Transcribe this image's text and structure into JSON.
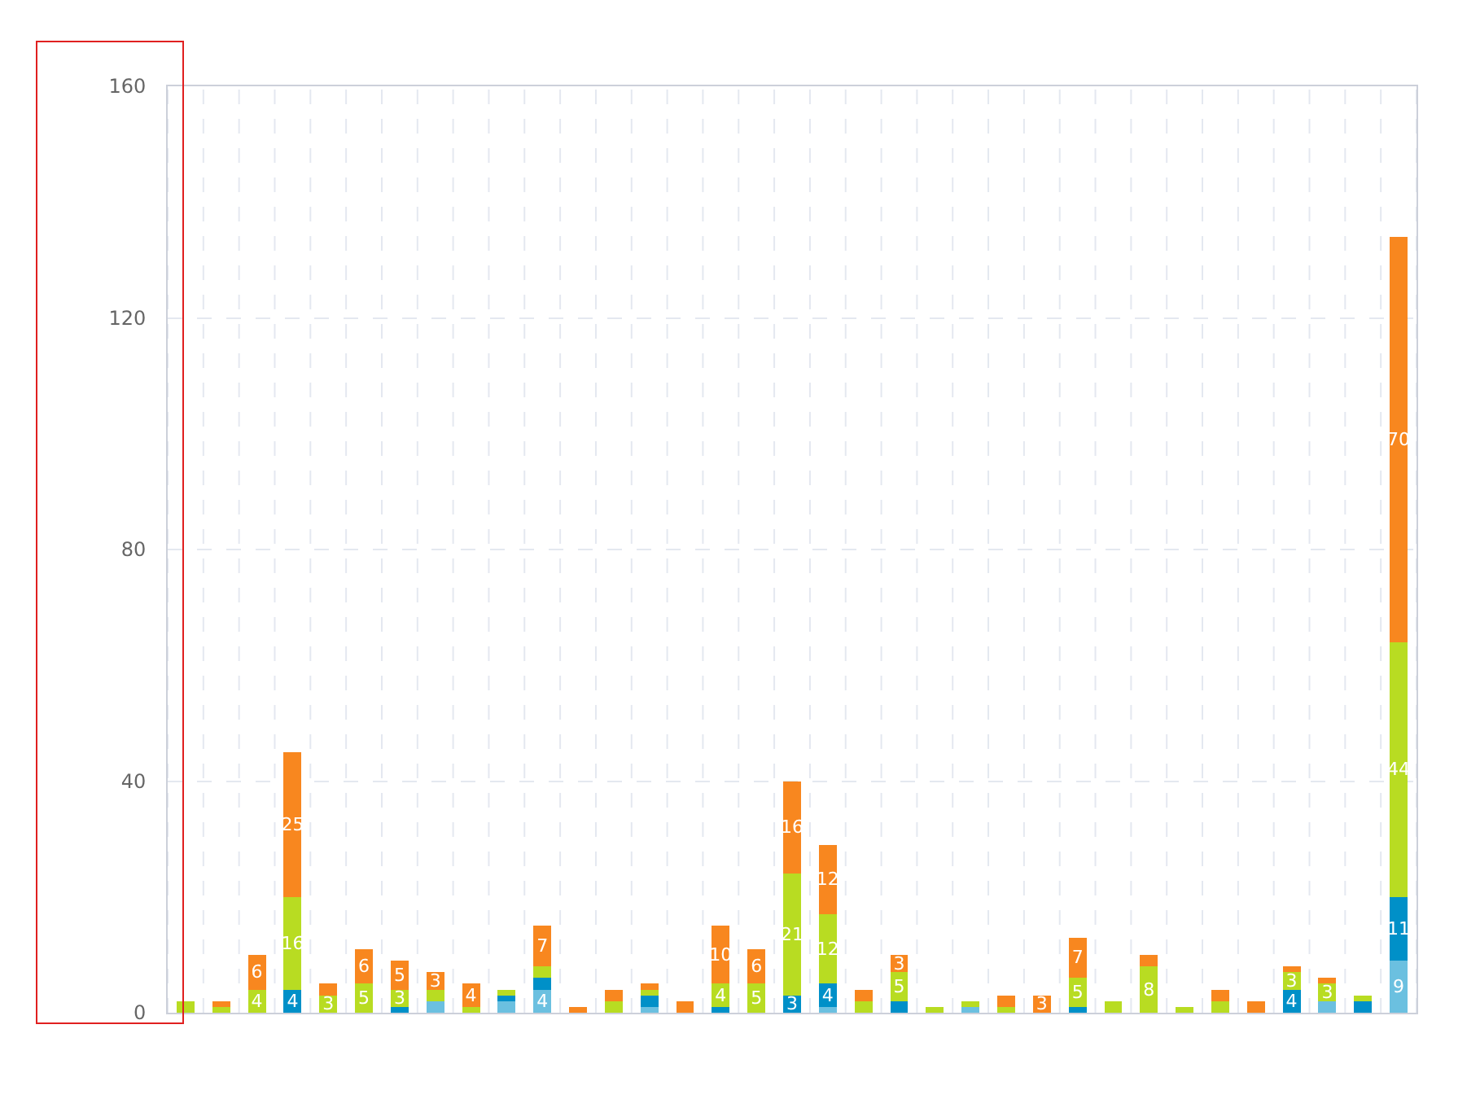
{
  "chart_data": {
    "type": "bar",
    "stacked": true,
    "categories": [
      null,
      null,
      null,
      null,
      null,
      null,
      null,
      null,
      null,
      null,
      null,
      null,
      null,
      null,
      null,
      null,
      null,
      null,
      null,
      null,
      null,
      null,
      null,
      null,
      null,
      null,
      null,
      null,
      null,
      null,
      null,
      null,
      null,
      null,
      null
    ],
    "series": [
      {
        "color": "#6bc0e0",
        "values": [
          null,
          null,
          null,
          null,
          null,
          null,
          null,
          2,
          null,
          2,
          4,
          null,
          null,
          1,
          null,
          null,
          null,
          null,
          1,
          null,
          null,
          null,
          1,
          null,
          null,
          null,
          null,
          null,
          null,
          null,
          null,
          null,
          2,
          null,
          9
        ],
        "value_labels": [
          null,
          null,
          null,
          null,
          null,
          null,
          null,
          null,
          null,
          null,
          "4",
          null,
          null,
          null,
          null,
          null,
          null,
          null,
          null,
          null,
          null,
          null,
          null,
          null,
          null,
          null,
          null,
          null,
          null,
          null,
          null,
          null,
          null,
          null,
          "9"
        ]
      },
      {
        "color": "#0090c8",
        "values": [
          null,
          null,
          null,
          4,
          null,
          null,
          1,
          null,
          null,
          1,
          2,
          null,
          null,
          2,
          null,
          1,
          null,
          3,
          4,
          null,
          2,
          null,
          null,
          null,
          null,
          1,
          null,
          null,
          null,
          null,
          null,
          4,
          null,
          2,
          11
        ],
        "value_labels": [
          null,
          null,
          null,
          "4",
          null,
          null,
          null,
          null,
          null,
          null,
          null,
          null,
          null,
          null,
          null,
          null,
          null,
          "3",
          "4",
          null,
          null,
          null,
          null,
          null,
          null,
          null,
          null,
          null,
          null,
          null,
          null,
          "4",
          null,
          null,
          "11"
        ]
      },
      {
        "color": "#b8dc22",
        "values": [
          2,
          1,
          4,
          16,
          3,
          5,
          3,
          2,
          1,
          1,
          2,
          null,
          2,
          1,
          null,
          4,
          5,
          21,
          12,
          2,
          5,
          1,
          1,
          1,
          null,
          5,
          2,
          8,
          1,
          2,
          null,
          3,
          3,
          1,
          44
        ],
        "value_labels": [
          null,
          null,
          "4",
          "16",
          "3",
          "5",
          "3",
          null,
          null,
          null,
          null,
          null,
          null,
          null,
          null,
          "4",
          "5",
          "21",
          "12",
          null,
          "5",
          null,
          null,
          null,
          null,
          "5",
          null,
          "8",
          null,
          null,
          null,
          "3",
          "3",
          null,
          "44"
        ]
      },
      {
        "color": "#f8871f",
        "values": [
          null,
          1,
          6,
          25,
          2,
          6,
          5,
          3,
          4,
          null,
          7,
          1,
          2,
          1,
          2,
          10,
          6,
          16,
          12,
          2,
          3,
          null,
          null,
          2,
          3,
          7,
          null,
          2,
          null,
          2,
          2,
          1,
          1,
          null,
          70
        ],
        "value_labels": [
          null,
          null,
          "6",
          "25",
          null,
          "6",
          "5",
          "3",
          "4",
          null,
          "7",
          null,
          null,
          null,
          null,
          "10",
          "6",
          "16",
          "12",
          null,
          "3",
          null,
          null,
          null,
          "3",
          "7",
          null,
          null,
          null,
          null,
          null,
          null,
          null,
          null,
          "70"
        ]
      }
    ],
    "ylim": [
      0,
      160
    ],
    "yticks": [
      0,
      40,
      80,
      120,
      160
    ],
    "grid": true
  }
}
